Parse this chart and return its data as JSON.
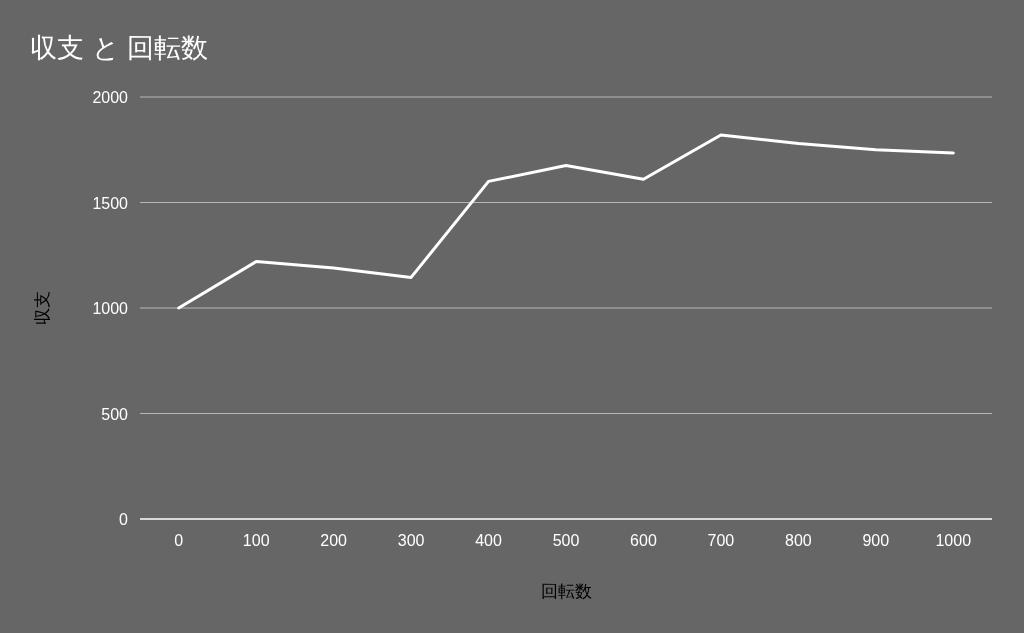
{
  "chart_data": {
    "type": "line",
    "title": "収支 と 回転数",
    "xlabel": "回転数",
    "ylabel": "収支",
    "categories": [
      "0",
      "100",
      "200",
      "300",
      "400",
      "500",
      "600",
      "700",
      "800",
      "900",
      "1000"
    ],
    "series": [
      {
        "color": "#ffffff",
        "values": [
          1000,
          1220,
          1190,
          1145,
          1600,
          1675,
          1610,
          1820,
          1780,
          1750,
          1735
        ]
      }
    ],
    "ylim": [
      0,
      2000
    ],
    "yticks": [
      0,
      500,
      1000,
      1500,
      2000
    ],
    "grid": "y"
  }
}
